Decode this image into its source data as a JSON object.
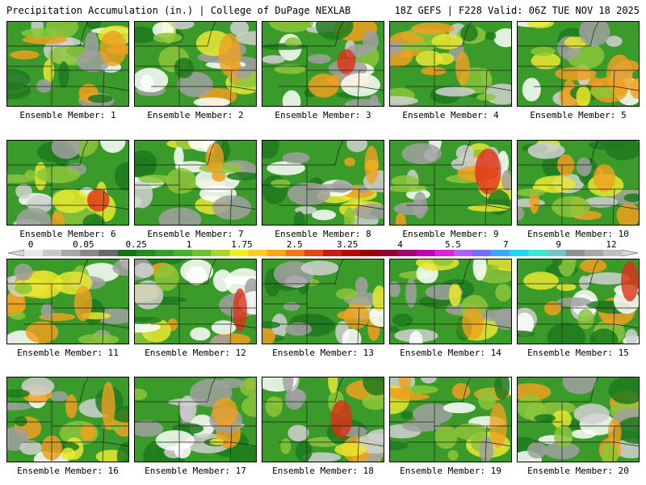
{
  "header": {
    "left": "Precipitation Accumulation (in.) | College of DuPage NEXLAB",
    "right": "18Z GEFS | F228 Valid: 06Z TUE NOV 18 2025"
  },
  "panel_label_prefix": "Ensemble Member: ",
  "members": [
    1,
    2,
    3,
    4,
    5,
    6,
    7,
    8,
    9,
    10,
    11,
    12,
    13,
    14,
    15,
    16,
    17,
    18,
    19,
    20
  ],
  "colorbar": {
    "tick_labels": [
      "0",
      "0.05",
      "0.25",
      "1",
      "1.75",
      "2.5",
      "3.25",
      "4",
      "5.5",
      "7",
      "9",
      "12"
    ],
    "colors": [
      "#e8e8e8",
      "#c8c8c8",
      "#a8a8a8",
      "#888888",
      "#686868",
      "#1a6e1a",
      "#248a24",
      "#30a030",
      "#48b030",
      "#70c030",
      "#a8d830",
      "#f0f020",
      "#f8d020",
      "#f8a818",
      "#f07818",
      "#e04818",
      "#d01818",
      "#b80808",
      "#980008",
      "#900030",
      "#a00070",
      "#c000b0",
      "#e020e0",
      "#b060f0",
      "#7070f8",
      "#40a8f8",
      "#20d8f0",
      "#40e8d8",
      "#70c8c0",
      "#909090",
      "#a8a8a8",
      "#c0c0c0"
    ],
    "arrow_color": "#d8d8d8"
  },
  "map_colors": {
    "bg": "#3a9a2a",
    "dark_green": "#1f7a1f",
    "light_green": "#8cc63a",
    "yellow": "#e8e830",
    "orange": "#f0a020",
    "red": "#e03018",
    "gray": "#a0a0a0",
    "light_gray": "#d0d0d0",
    "white": "#ffffff",
    "border": "#202020"
  }
}
